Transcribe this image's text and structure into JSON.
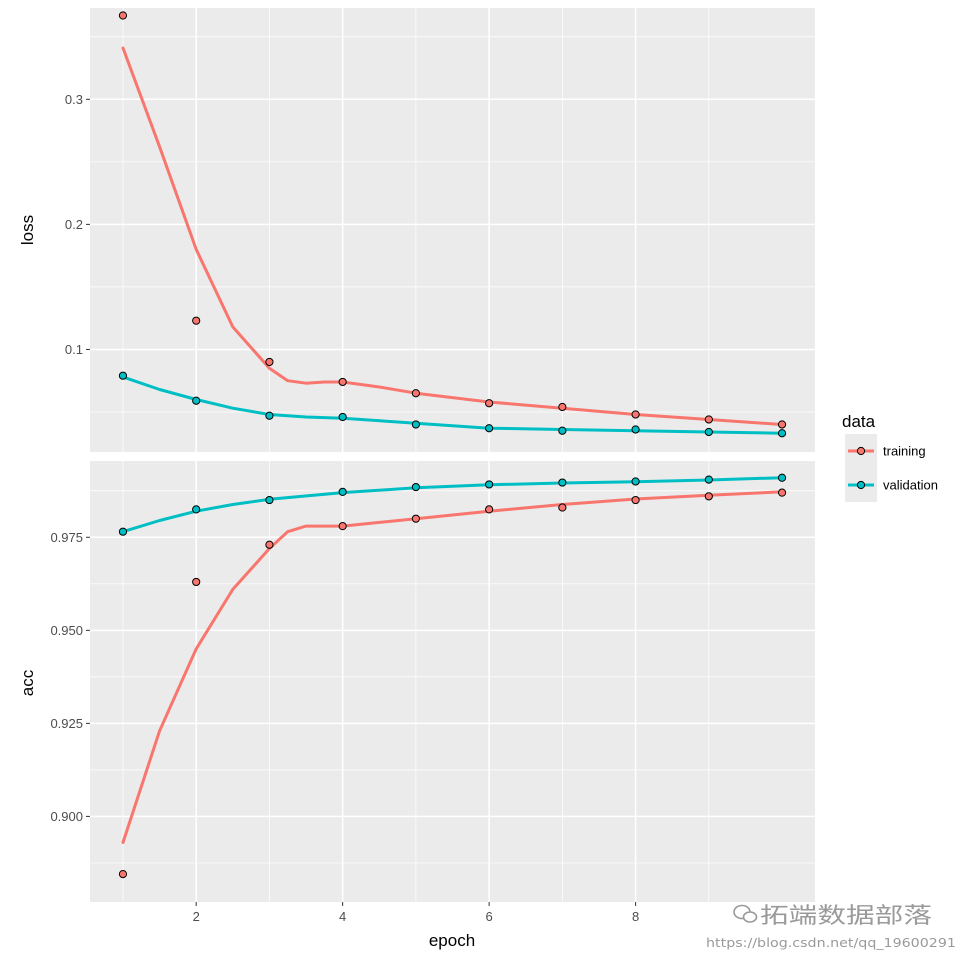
{
  "chart_data": [
    {
      "type": "line",
      "panel": "loss",
      "ylabel": "loss",
      "xlim": [
        0.55,
        10.45
      ],
      "ylim": [
        0.018,
        0.373
      ],
      "yticks": [
        0.1,
        0.2,
        0.3
      ],
      "ytick_labels": [
        "0.1",
        "0.2",
        "0.3"
      ],
      "grid": true,
      "series": [
        {
          "name": "training",
          "color": "#F8766D",
          "x": [
            1,
            2,
            3,
            4,
            5,
            6,
            7,
            8,
            9,
            10
          ],
          "points": [
            0.367,
            0.123,
            0.09,
            0.074,
            0.065,
            0.057,
            0.054,
            0.048,
            0.044,
            0.04
          ],
          "smooth": [
            [
              1,
              0.341
            ],
            [
              1.5,
              0.262
            ],
            [
              2,
              0.18
            ],
            [
              2.5,
              0.118
            ],
            [
              3,
              0.085
            ],
            [
              3.25,
              0.075
            ],
            [
              3.5,
              0.073
            ],
            [
              3.75,
              0.074
            ],
            [
              4,
              0.074
            ],
            [
              4.5,
              0.07
            ],
            [
              5,
              0.065
            ],
            [
              6,
              0.058
            ],
            [
              7,
              0.053
            ],
            [
              8,
              0.048
            ],
            [
              9,
              0.044
            ],
            [
              10,
              0.04
            ]
          ]
        },
        {
          "name": "validation",
          "color": "#00BFC4",
          "x": [
            1,
            2,
            3,
            4,
            5,
            6,
            7,
            8,
            9,
            10
          ],
          "points": [
            0.079,
            0.059,
            0.047,
            0.046,
            0.04,
            0.037,
            0.035,
            0.036,
            0.034,
            0.033
          ],
          "smooth": [
            [
              1,
              0.078
            ],
            [
              1.5,
              0.068
            ],
            [
              2,
              0.06
            ],
            [
              2.5,
              0.053
            ],
            [
              3,
              0.048
            ],
            [
              3.5,
              0.046
            ],
            [
              4,
              0.045
            ],
            [
              5,
              0.041
            ],
            [
              6,
              0.037
            ],
            [
              7,
              0.036
            ],
            [
              8,
              0.035
            ],
            [
              9,
              0.034
            ],
            [
              10,
              0.033
            ]
          ]
        }
      ]
    },
    {
      "type": "line",
      "panel": "acc",
      "xlabel": "epoch",
      "ylabel": "acc",
      "xlim": [
        0.55,
        10.45
      ],
      "ylim": [
        0.877,
        0.9955
      ],
      "xticks": [
        2,
        4,
        6,
        8
      ],
      "xtick_labels": [
        "2",
        "4",
        "6",
        "8"
      ],
      "yticks": [
        0.9,
        0.925,
        0.95,
        0.975
      ],
      "ytick_labels": [
        "0.900",
        "0.925",
        "0.950",
        "0.975"
      ],
      "grid": true,
      "series": [
        {
          "name": "training",
          "color": "#F8766D",
          "x": [
            1,
            2,
            3,
            4,
            5,
            6,
            7,
            8,
            9,
            10
          ],
          "points": [
            0.8845,
            0.963,
            0.973,
            0.978,
            0.98,
            0.9825,
            0.983,
            0.985,
            0.986,
            0.987
          ],
          "smooth": [
            [
              1,
              0.893
            ],
            [
              1.5,
              0.923
            ],
            [
              2,
              0.945
            ],
            [
              2.5,
              0.961
            ],
            [
              3,
              0.972
            ],
            [
              3.25,
              0.9765
            ],
            [
              3.5,
              0.978
            ],
            [
              3.75,
              0.978
            ],
            [
              4,
              0.978
            ],
            [
              4.5,
              0.979
            ],
            [
              5,
              0.98
            ],
            [
              6,
              0.982
            ],
            [
              7,
              0.9838
            ],
            [
              8,
              0.9853
            ],
            [
              9,
              0.9863
            ],
            [
              10,
              0.9872
            ]
          ]
        },
        {
          "name": "validation",
          "color": "#00BFC4",
          "x": [
            1,
            2,
            3,
            4,
            5,
            6,
            7,
            8,
            9,
            10
          ],
          "points": [
            0.9765,
            0.9825,
            0.985,
            0.9872,
            0.9885,
            0.9892,
            0.9897,
            0.99,
            0.9905,
            0.991
          ],
          "smooth": [
            [
              1,
              0.9765
            ],
            [
              1.5,
              0.9795
            ],
            [
              2,
              0.982
            ],
            [
              2.5,
              0.9838
            ],
            [
              3,
              0.9852
            ],
            [
              4,
              0.987
            ],
            [
              5,
              0.9883
            ],
            [
              6,
              0.9891
            ],
            [
              7,
              0.9896
            ],
            [
              8,
              0.9899
            ],
            [
              9,
              0.9904
            ],
            [
              10,
              0.991
            ]
          ]
        }
      ]
    }
  ],
  "legend": {
    "title": "data",
    "placement": "right",
    "items": [
      {
        "label": "training",
        "color": "#F8766D"
      },
      {
        "label": "validation",
        "color": "#00BFC4"
      }
    ]
  },
  "watermark": {
    "brand": "拓端数据部落",
    "url": "https://blog.csdn.net/qq_19600291"
  },
  "colors": {
    "panel_background": "#EBEBEB",
    "grid": "#FFFFFF",
    "point_outline": "#000000"
  }
}
